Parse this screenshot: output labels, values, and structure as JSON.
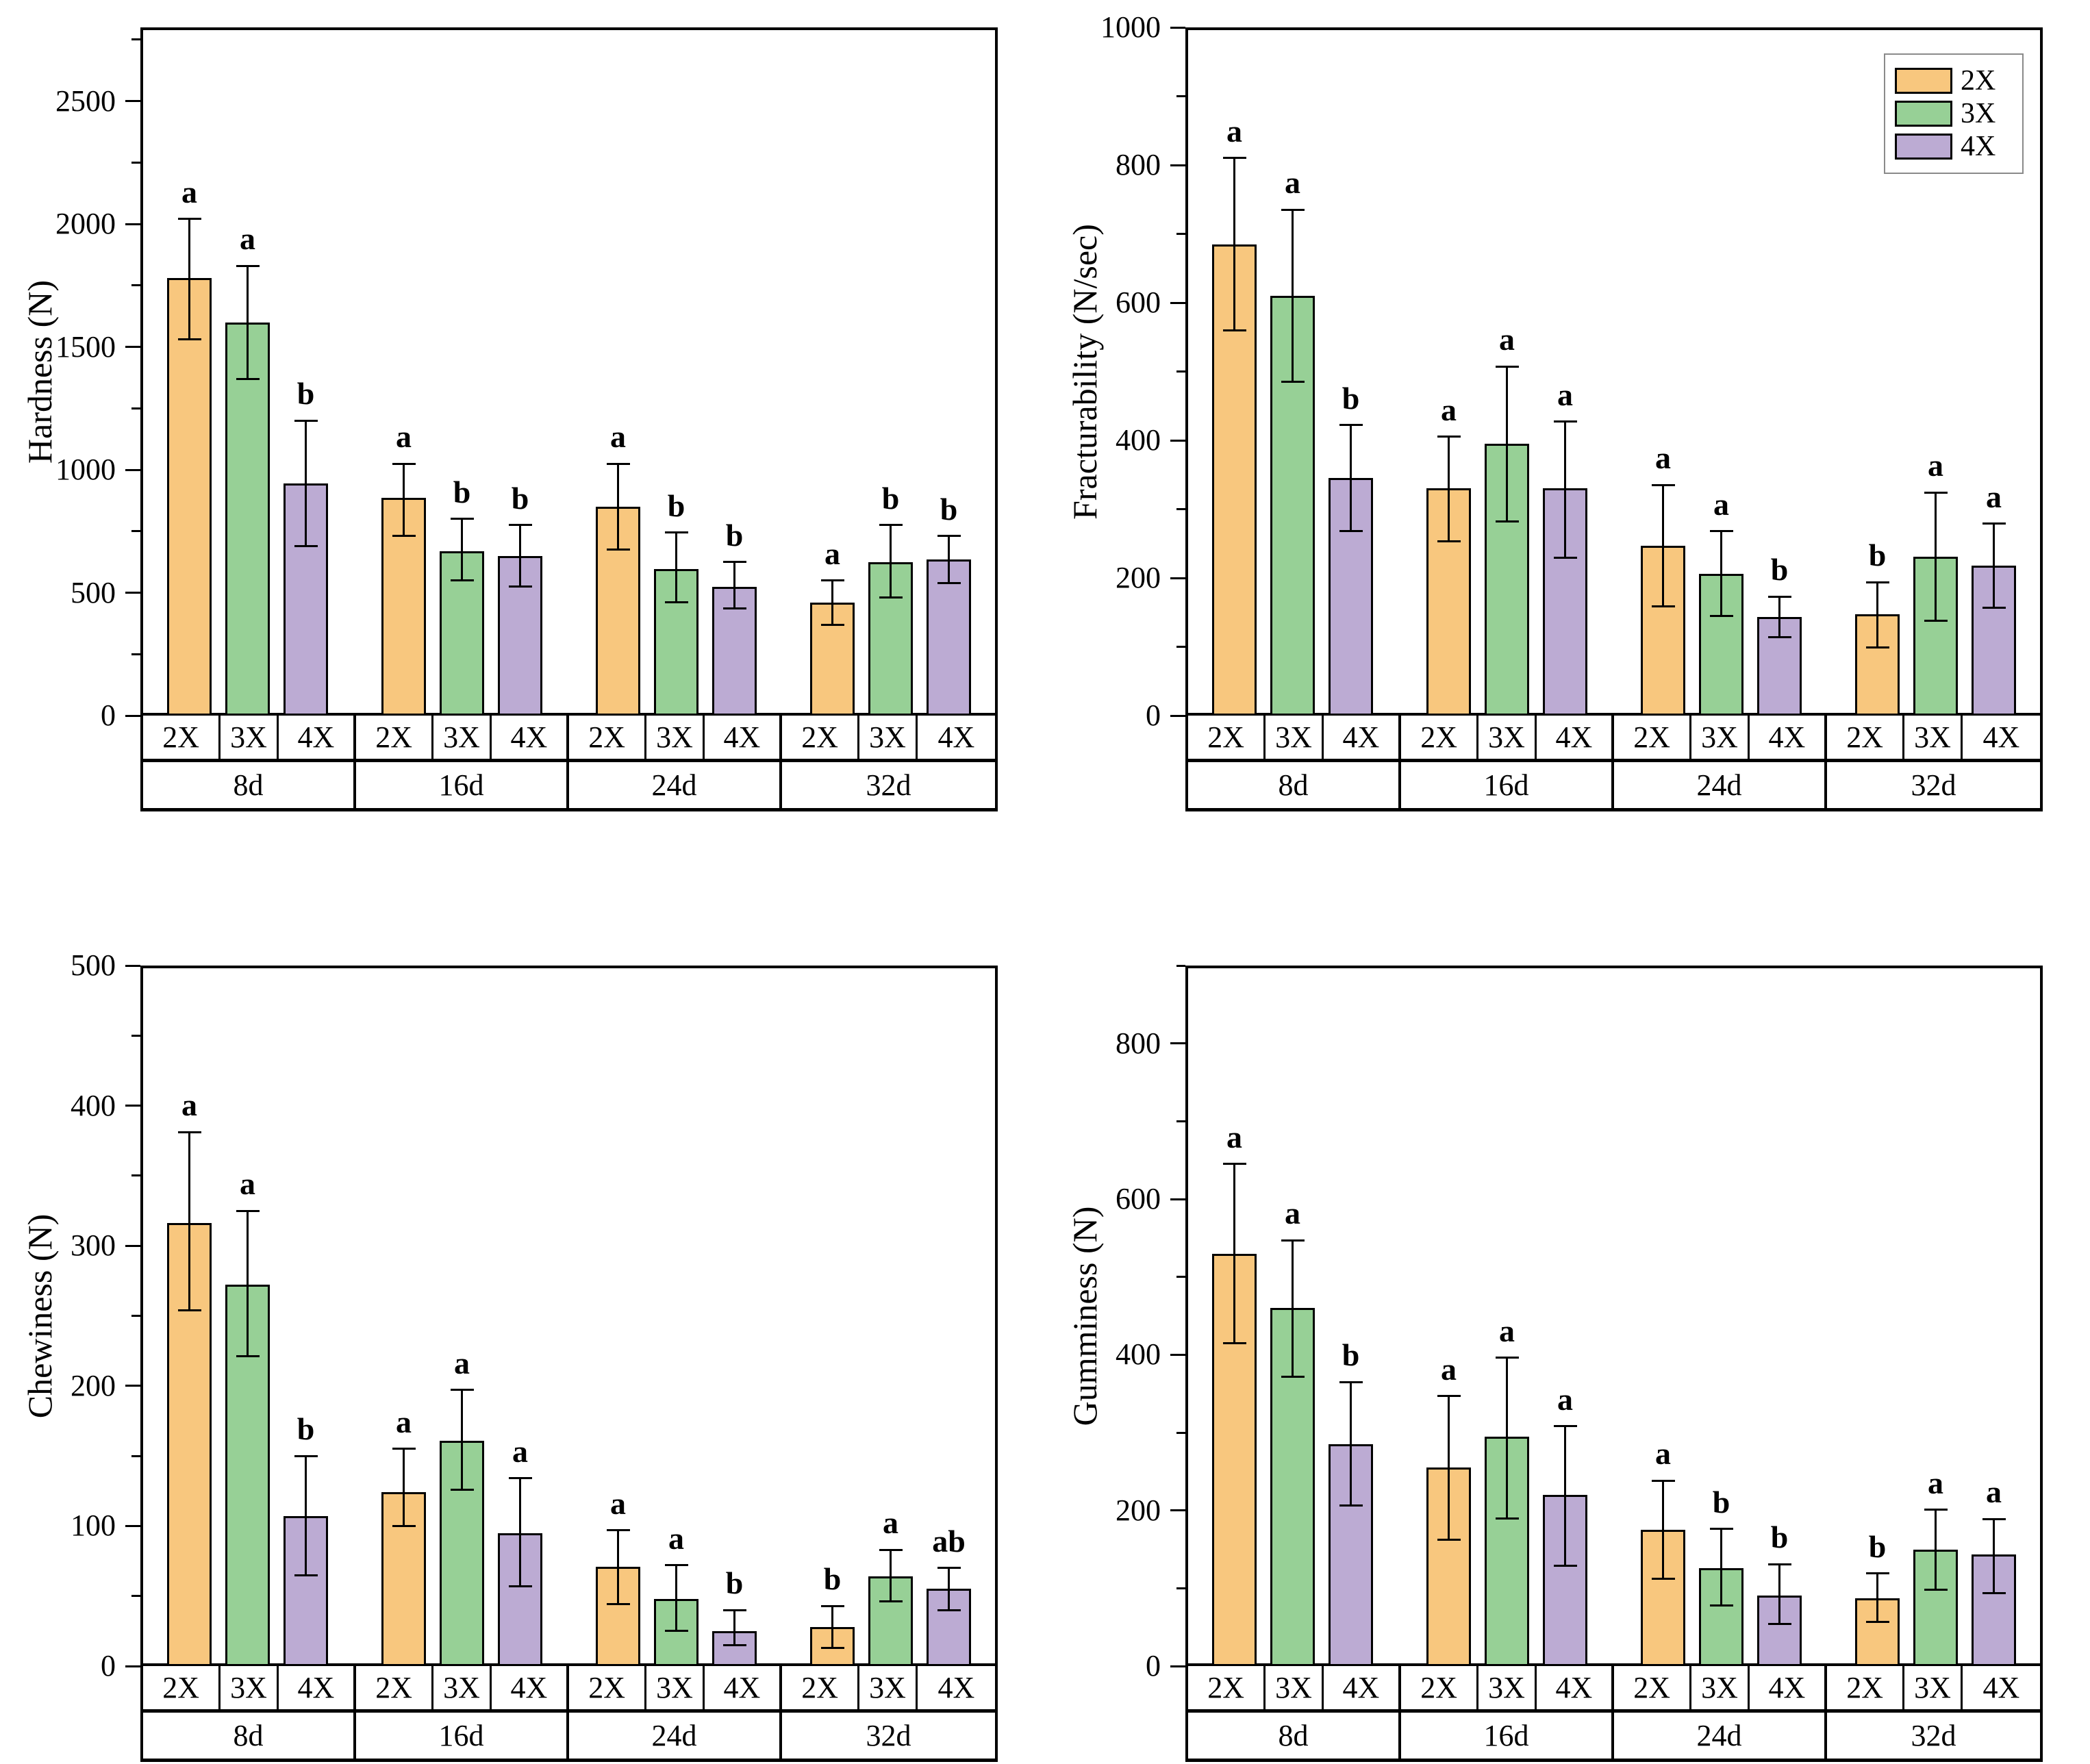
{
  "figure_title": "",
  "colors": {
    "bar_2X": "#F8C77E",
    "bar_3X": "#97D096",
    "bar_4X": "#BCABD3",
    "outline": "#000000",
    "legend_border": "#8a8a8a"
  },
  "chart_data": [
    {
      "id": "hardness",
      "type": "bar",
      "title": "",
      "xlabel": "",
      "ylabel": "Hardness (N)",
      "ylim": [
        0,
        2800
      ],
      "ytick_major": 500,
      "ytick_minor": 250,
      "grid": false,
      "legend": false,
      "series_labels": [
        "2X",
        "3X",
        "4X"
      ],
      "groups": [
        {
          "label": "8d",
          "bars": [
            {
              "series": "2X",
              "value": 1780,
              "err_low": 1530,
              "err_high": 2020,
              "letter": "a"
            },
            {
              "series": "3X",
              "value": 1600,
              "err_low": 1370,
              "err_high": 1830,
              "letter": "a"
            },
            {
              "series": "4X",
              "value": 945,
              "err_low": 690,
              "err_high": 1200,
              "letter": "b"
            }
          ]
        },
        {
          "label": "16d",
          "bars": [
            {
              "series": "2X",
              "value": 885,
              "err_low": 730,
              "err_high": 1025,
              "letter": "a"
            },
            {
              "series": "3X",
              "value": 670,
              "err_low": 550,
              "err_high": 800,
              "letter": "b"
            },
            {
              "series": "4X",
              "value": 650,
              "err_low": 525,
              "err_high": 775,
              "letter": "b"
            }
          ]
        },
        {
          "label": "24d",
          "bars": [
            {
              "series": "2X",
              "value": 850,
              "err_low": 675,
              "err_high": 1025,
              "letter": "a"
            },
            {
              "series": "3X",
              "value": 595,
              "err_low": 460,
              "err_high": 745,
              "letter": "b"
            },
            {
              "series": "4X",
              "value": 525,
              "err_low": 435,
              "err_high": 625,
              "letter": "b"
            }
          ]
        },
        {
          "label": "32d",
          "bars": [
            {
              "series": "2X",
              "value": 460,
              "err_low": 370,
              "err_high": 550,
              "letter": "a"
            },
            {
              "series": "3X",
              "value": 625,
              "err_low": 480,
              "err_high": 775,
              "letter": "b"
            },
            {
              "series": "4X",
              "value": 635,
              "err_low": 540,
              "err_high": 730,
              "letter": "b"
            }
          ]
        }
      ]
    },
    {
      "id": "fracturability",
      "type": "bar",
      "title": "",
      "xlabel": "",
      "ylabel": "Fracturability (N/sec)",
      "ylim": [
        0,
        1000
      ],
      "ytick_major": 200,
      "ytick_minor": 100,
      "grid": false,
      "legend": true,
      "legend_position": "top-right",
      "series_labels": [
        "2X",
        "3X",
        "4X"
      ],
      "groups": [
        {
          "label": "8d",
          "bars": [
            {
              "series": "2X",
              "value": 685,
              "err_low": 560,
              "err_high": 810,
              "letter": "a"
            },
            {
              "series": "3X",
              "value": 610,
              "err_low": 485,
              "err_high": 735,
              "letter": "a"
            },
            {
              "series": "4X",
              "value": 345,
              "err_low": 268,
              "err_high": 422,
              "letter": "b"
            }
          ]
        },
        {
          "label": "16d",
          "bars": [
            {
              "series": "2X",
              "value": 330,
              "err_low": 253,
              "err_high": 405,
              "letter": "a"
            },
            {
              "series": "3X",
              "value": 395,
              "err_low": 282,
              "err_high": 507,
              "letter": "a"
            },
            {
              "series": "4X",
              "value": 330,
              "err_low": 229,
              "err_high": 427,
              "letter": "a"
            }
          ]
        },
        {
          "label": "24d",
          "bars": [
            {
              "series": "2X",
              "value": 247,
              "err_low": 159,
              "err_high": 335,
              "letter": "a"
            },
            {
              "series": "3X",
              "value": 206,
              "err_low": 145,
              "err_high": 268,
              "letter": "a"
            },
            {
              "series": "4X",
              "value": 143,
              "err_low": 114,
              "err_high": 173,
              "letter": "b"
            }
          ]
        },
        {
          "label": "32d",
          "bars": [
            {
              "series": "2X",
              "value": 147,
              "err_low": 99,
              "err_high": 194,
              "letter": "b"
            },
            {
              "series": "3X",
              "value": 231,
              "err_low": 138,
              "err_high": 324,
              "letter": "a"
            },
            {
              "series": "4X",
              "value": 218,
              "err_low": 157,
              "err_high": 279,
              "letter": "a"
            }
          ]
        }
      ]
    },
    {
      "id": "chewiness",
      "type": "bar",
      "title": "",
      "xlabel": "",
      "ylabel": "Chewiness (N)",
      "ylim": [
        0,
        500
      ],
      "ytick_major": 100,
      "ytick_minor": 50,
      "grid": false,
      "legend": false,
      "series_labels": [
        "2X",
        "3X",
        "4X"
      ],
      "groups": [
        {
          "label": "8d",
          "bars": [
            {
              "series": "2X",
              "value": 316,
              "err_low": 254,
              "err_high": 381,
              "letter": "a"
            },
            {
              "series": "3X",
              "value": 272,
              "err_low": 221,
              "err_high": 325,
              "letter": "a"
            },
            {
              "series": "4X",
              "value": 107,
              "err_low": 65,
              "err_high": 150,
              "letter": "b"
            }
          ]
        },
        {
          "label": "16d",
          "bars": [
            {
              "series": "2X",
              "value": 124,
              "err_low": 100,
              "err_high": 155,
              "letter": "a"
            },
            {
              "series": "3X",
              "value": 161,
              "err_low": 126,
              "err_high": 197,
              "letter": "a"
            },
            {
              "series": "4X",
              "value": 95,
              "err_low": 57,
              "err_high": 134,
              "letter": "a"
            }
          ]
        },
        {
          "label": "24d",
          "bars": [
            {
              "series": "2X",
              "value": 71,
              "err_low": 44,
              "err_high": 97,
              "letter": "a"
            },
            {
              "series": "3X",
              "value": 48,
              "err_low": 25,
              "err_high": 72,
              "letter": "a"
            },
            {
              "series": "4X",
              "value": 25,
              "err_low": 15,
              "err_high": 40,
              "letter": "b"
            }
          ]
        },
        {
          "label": "32d",
          "bars": [
            {
              "series": "2X",
              "value": 28,
              "err_low": 13,
              "err_high": 43,
              "letter": "b"
            },
            {
              "series": "3X",
              "value": 64,
              "err_low": 46,
              "err_high": 83,
              "letter": "a"
            },
            {
              "series": "4X",
              "value": 55,
              "err_low": 40,
              "err_high": 70,
              "letter": "ab"
            }
          ]
        }
      ]
    },
    {
      "id": "gumminess",
      "type": "bar",
      "title": "",
      "xlabel": "",
      "ylabel": "Gumminess (N)",
      "ylim": [
        0,
        900
      ],
      "ytick_major": 200,
      "ytick_minor": 100,
      "grid": false,
      "legend": false,
      "series_labels": [
        "2X",
        "3X",
        "4X"
      ],
      "groups": [
        {
          "label": "8d",
          "bars": [
            {
              "series": "2X",
              "value": 530,
              "err_low": 415,
              "err_high": 645,
              "letter": "a"
            },
            {
              "series": "3X",
              "value": 460,
              "err_low": 372,
              "err_high": 547,
              "letter": "a"
            },
            {
              "series": "4X",
              "value": 285,
              "err_low": 206,
              "err_high": 365,
              "letter": "b"
            }
          ]
        },
        {
          "label": "16d",
          "bars": [
            {
              "series": "2X",
              "value": 255,
              "err_low": 162,
              "err_high": 347,
              "letter": "a"
            },
            {
              "series": "3X",
              "value": 295,
              "err_low": 190,
              "err_high": 396,
              "letter": "a"
            },
            {
              "series": "4X",
              "value": 220,
              "err_low": 129,
              "err_high": 308,
              "letter": "a"
            }
          ]
        },
        {
          "label": "24d",
          "bars": [
            {
              "series": "2X",
              "value": 175,
              "err_low": 112,
              "err_high": 238,
              "letter": "a"
            },
            {
              "series": "3X",
              "value": 126,
              "err_low": 78,
              "err_high": 176,
              "letter": "b"
            },
            {
              "series": "4X",
              "value": 91,
              "err_low": 54,
              "err_high": 131,
              "letter": "b"
            }
          ]
        },
        {
          "label": "32d",
          "bars": [
            {
              "series": "2X",
              "value": 87,
              "err_low": 57,
              "err_high": 119,
              "letter": "b"
            },
            {
              "series": "3X",
              "value": 150,
              "err_low": 98,
              "err_high": 201,
              "letter": "a"
            },
            {
              "series": "4X",
              "value": 143,
              "err_low": 94,
              "err_high": 189,
              "letter": "a"
            }
          ]
        }
      ]
    }
  ]
}
